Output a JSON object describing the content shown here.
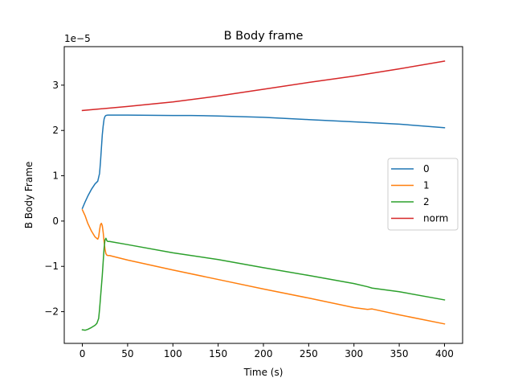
{
  "chart_data": {
    "type": "line",
    "title": "B Body frame",
    "xlabel": "Time (s)",
    "ylabel": "B Body Frame",
    "offset_text": "1e−5",
    "xlim": [
      -20,
      420
    ],
    "ylim": [
      -2.7,
      3.85
    ],
    "xticks": [
      0,
      50,
      100,
      150,
      200,
      250,
      300,
      350,
      400
    ],
    "yticks": [
      -2,
      -1,
      0,
      1,
      2,
      3
    ],
    "ytick_labels": [
      "−2",
      "−1",
      "0",
      "1",
      "2",
      "3"
    ],
    "grid": false,
    "legend_position": "center-right",
    "series": [
      {
        "name": "0",
        "color": "#1f77b4",
        "x": [
          0,
          3,
          6,
          10,
          14,
          17,
          19,
          20,
          21,
          22,
          23,
          24,
          25,
          26,
          28,
          30,
          50,
          100,
          120,
          150,
          200,
          250,
          300,
          320,
          350,
          400
        ],
        "y": [
          0.28,
          0.42,
          0.55,
          0.7,
          0.82,
          0.88,
          1.05,
          1.3,
          1.6,
          1.9,
          2.1,
          2.25,
          2.31,
          2.33,
          2.34,
          2.34,
          2.34,
          2.33,
          2.33,
          2.32,
          2.29,
          2.24,
          2.19,
          2.17,
          2.14,
          2.06
        ]
      },
      {
        "name": "1",
        "color": "#ff7f0e",
        "x": [
          0,
          3,
          6,
          10,
          14,
          17,
          18,
          19,
          20,
          21,
          22,
          23,
          24,
          25,
          26,
          27,
          28,
          30,
          50,
          100,
          150,
          200,
          250,
          300,
          315,
          320,
          350,
          400
        ],
        "y": [
          0.25,
          0.12,
          -0.05,
          -0.22,
          -0.35,
          -0.4,
          -0.35,
          -0.2,
          -0.08,
          -0.05,
          -0.1,
          -0.25,
          -0.45,
          -0.62,
          -0.72,
          -0.75,
          -0.76,
          -0.76,
          -0.86,
          -1.08,
          -1.29,
          -1.5,
          -1.7,
          -1.91,
          -1.95,
          -1.94,
          -2.07,
          -2.27
        ]
      },
      {
        "name": "2",
        "color": "#2ca02c",
        "x": [
          0,
          3,
          6,
          10,
          14,
          16,
          18,
          19,
          20,
          21,
          22,
          23,
          24,
          25,
          26,
          27,
          28,
          30,
          50,
          100,
          150,
          200,
          250,
          300,
          315,
          320,
          350,
          400
        ],
        "y": [
          -2.4,
          -2.41,
          -2.39,
          -2.35,
          -2.3,
          -2.26,
          -2.15,
          -1.95,
          -1.7,
          -1.45,
          -1.2,
          -0.9,
          -0.6,
          -0.42,
          -0.38,
          -0.43,
          -0.45,
          -0.45,
          -0.52,
          -0.7,
          -0.85,
          -1.03,
          -1.2,
          -1.38,
          -1.45,
          -1.48,
          -1.56,
          -1.74
        ]
      },
      {
        "name": "norm",
        "color": "#d62728",
        "x": [
          0,
          50,
          100,
          150,
          200,
          250,
          300,
          350,
          400
        ],
        "y": [
          2.44,
          2.53,
          2.63,
          2.76,
          2.91,
          3.06,
          3.2,
          3.36,
          3.53
        ]
      }
    ]
  }
}
